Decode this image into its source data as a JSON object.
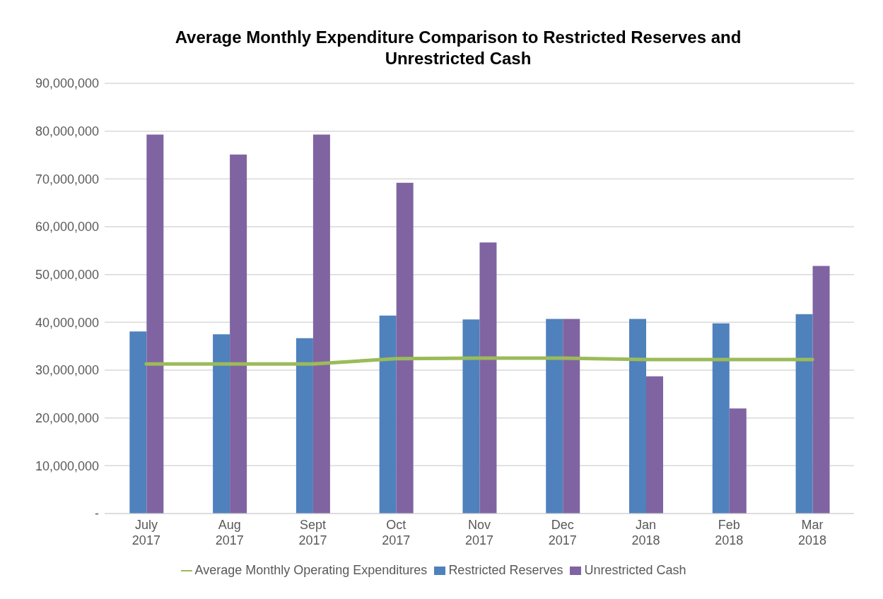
{
  "chart_data": {
    "type": "bar",
    "title": "Average Monthly Expenditure Comparison to Restricted Reserves and Unrestricted Cash",
    "categories": [
      "July 2017",
      "Aug 2017",
      "Sept 2017",
      "Oct 2017",
      "Nov 2017",
      "Dec 2017",
      "Jan 2018",
      "Feb 2018",
      "Mar 2018"
    ],
    "series": [
      {
        "name": "Restricted Reserves",
        "color": "#4f81bd",
        "values": [
          38100000,
          37500000,
          36700000,
          41400000,
          40600000,
          40700000,
          40700000,
          39800000,
          41700000
        ]
      },
      {
        "name": "Unrestricted Cash",
        "color": "#8064a2",
        "values": [
          79300000,
          75100000,
          79300000,
          69200000,
          56700000,
          40700000,
          28700000,
          22000000,
          51800000
        ]
      },
      {
        "name": "Average Monthly Operating Expenditures",
        "type": "line",
        "color": "#9bbb59",
        "values": [
          31300000,
          31300000,
          31300000,
          32400000,
          32500000,
          32500000,
          32200000,
          32200000,
          32200000
        ]
      }
    ],
    "ylim": [
      0,
      90000000
    ],
    "yticks": [
      {
        "value": 0,
        "label": "-"
      },
      {
        "value": 10000000,
        "label": "10,000,000"
      },
      {
        "value": 20000000,
        "label": "20,000,000"
      },
      {
        "value": 30000000,
        "label": "30,000,000"
      },
      {
        "value": 40000000,
        "label": "40,000,000"
      },
      {
        "value": 50000000,
        "label": "50,000,000"
      },
      {
        "value": 60000000,
        "label": "60,000,000"
      },
      {
        "value": 70000000,
        "label": "70,000,000"
      },
      {
        "value": 80000000,
        "label": "80,000,000"
      },
      {
        "value": 90000000,
        "label": "90,000,000"
      }
    ],
    "grid": "y",
    "legend": "bottom",
    "marker": "none",
    "line_style": "solid"
  }
}
